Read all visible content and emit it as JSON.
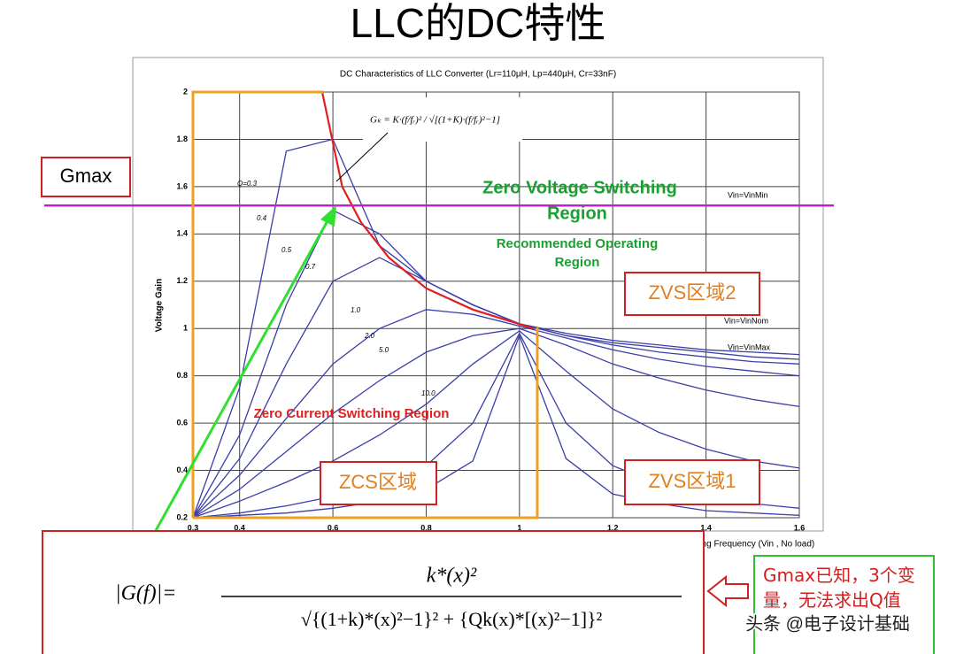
{
  "chart_data": {
    "type": "line",
    "slide_title": "LLC的DC特性",
    "title": "DC Characteristics of LLC Converter (Lr=110µH, Lp=440µH, Cr=33nF)",
    "y_label": "Voltage Gain",
    "x_label": "Operating Frequency (Vin , No load)",
    "xlim": [
      0.3,
      1.6
    ],
    "ylim": [
      0.2,
      2
    ],
    "xticks": [
      0.3,
      0.4,
      0.6,
      0.8,
      1,
      1.2,
      1.4,
      1.6
    ],
    "yticks": [
      0.2,
      0.4,
      0.6,
      0.8,
      1,
      1.2,
      1.4,
      1.6,
      1.8,
      2
    ],
    "grid": true,
    "x": [
      0.3,
      0.4,
      0.5,
      0.6,
      0.7,
      0.8,
      0.9,
      1.0,
      1.1,
      1.2,
      1.3,
      1.4,
      1.5,
      1.6
    ],
    "series": [
      {
        "name": "Q=0.3",
        "color": "#3a3ea8",
        "values": [
          0.2,
          0.75,
          1.75,
          1.8,
          1.35,
          1.2,
          1.1,
          1.02,
          0.98,
          0.95,
          0.93,
          0.91,
          0.9,
          0.89
        ]
      },
      {
        "name": "0.4",
        "color": "#3a3ea8",
        "values": [
          0.2,
          0.55,
          1.1,
          1.5,
          1.4,
          1.2,
          1.1,
          1.02,
          0.97,
          0.94,
          0.92,
          0.9,
          0.88,
          0.87
        ]
      },
      {
        "name": "0.5",
        "color": "#3a3ea8",
        "values": [
          0.2,
          0.45,
          0.85,
          1.2,
          1.3,
          1.2,
          1.1,
          1.02,
          0.97,
          0.93,
          0.9,
          0.88,
          0.86,
          0.85
        ]
      },
      {
        "name": "0.7",
        "color": "#3a3ea8",
        "values": [
          0.2,
          0.38,
          0.62,
          0.85,
          1.0,
          1.08,
          1.06,
          1.01,
          0.96,
          0.91,
          0.87,
          0.84,
          0.82,
          0.8
        ]
      },
      {
        "name": "1.0",
        "color": "#3a3ea8",
        "values": [
          0.2,
          0.32,
          0.48,
          0.64,
          0.78,
          0.9,
          0.97,
          1.0,
          0.93,
          0.85,
          0.79,
          0.74,
          0.7,
          0.67
        ]
      },
      {
        "name": "2.0",
        "color": "#3a3ea8",
        "values": [
          0.2,
          0.27,
          0.35,
          0.44,
          0.55,
          0.68,
          0.85,
          0.99,
          0.82,
          0.66,
          0.56,
          0.49,
          0.44,
          0.41
        ]
      },
      {
        "name": "5.0",
        "color": "#3a3ea8",
        "values": [
          0.2,
          0.22,
          0.25,
          0.29,
          0.34,
          0.42,
          0.6,
          0.98,
          0.6,
          0.42,
          0.34,
          0.29,
          0.26,
          0.24
        ]
      },
      {
        "name": "10.0",
        "color": "#3a3ea8",
        "values": [
          0.2,
          0.21,
          0.22,
          0.24,
          0.27,
          0.32,
          0.44,
          0.97,
          0.45,
          0.3,
          0.26,
          0.23,
          0.22,
          0.21
        ]
      }
    ],
    "peak_curve": {
      "color": "#e02020",
      "x": [
        0.577,
        0.62,
        0.66,
        0.72,
        0.8,
        0.9,
        1.03
      ],
      "values": [
        2,
        1.6,
        1.45,
        1.3,
        1.17,
        1.08,
        1.0
      ]
    },
    "gmax_line": {
      "value": 1.52,
      "color": "#c020d0"
    },
    "annotations": {
      "zvs_region": "Zero Voltage Switching",
      "zvs_region2": "Region",
      "recommended": "Recommended Operating",
      "recommended2": "Region",
      "zcs_region": "Zero Current Switching Region",
      "vin_min": "Vin=VinMin",
      "vin_nom": "Vin=VinNom",
      "vin_max": "Vin=VinMax",
      "gk_formula": "Gₖ = K·(f/fᵣ)² / √[(1+K)·(f/fᵣ)²−1]"
    },
    "boxes": {
      "gmax": "Gmax",
      "zvs2": "ZVS区域2",
      "zcs": "ZCS区域",
      "zvs1": "ZVS区域1"
    },
    "formula": {
      "lhs": "|G(f)|=",
      "numerator": "k*(x)²",
      "denominator": "√{(1+k)*(x)²−1}² + {Qk(x)*[(x)²−1]}²"
    },
    "note": "Gmax已知，3个变量，无法求出Q值",
    "watermark": "头条 @电子设计基础"
  }
}
